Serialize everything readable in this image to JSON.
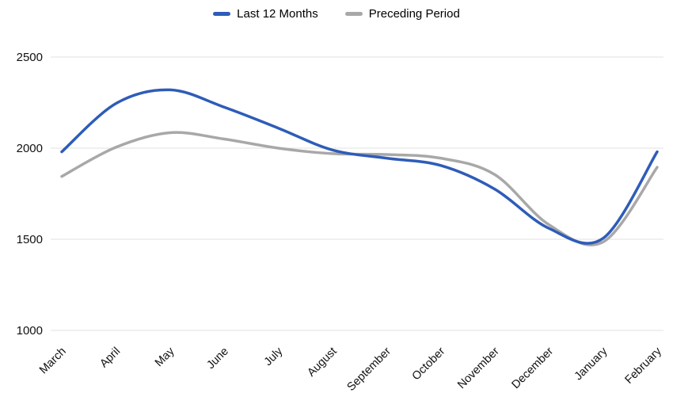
{
  "chart_data": {
    "type": "line",
    "title": "",
    "xlabel": "",
    "ylabel": "",
    "categories": [
      "March",
      "April",
      "May",
      "June",
      "July",
      "August",
      "September",
      "October",
      "November",
      "December",
      "January",
      "February"
    ],
    "series": [
      {
        "name": "Last 12 Months",
        "color": "#2e5cb8",
        "values": [
          1980,
          2245,
          2320,
          2225,
          2110,
          1990,
          1945,
          1905,
          1775,
          1560,
          1505,
          1980
        ]
      },
      {
        "name": "Preceding Period",
        "color": "#a8a8a8",
        "values": [
          1845,
          2005,
          2085,
          2050,
          2000,
          1970,
          1965,
          1945,
          1855,
          1580,
          1485,
          1895
        ]
      }
    ],
    "ylim": [
      1000,
      2500
    ],
    "yticks": [
      1000,
      1500,
      2000,
      2500
    ],
    "grid": true,
    "grid_color": "#e2e2e2",
    "axis_text_color": "#111111",
    "legend_position": "top",
    "smooth": true
  }
}
